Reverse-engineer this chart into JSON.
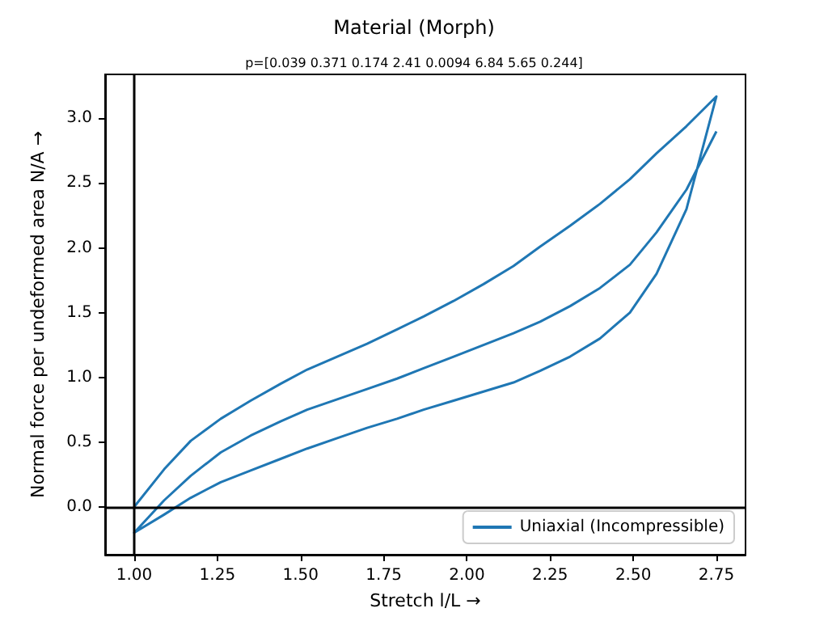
{
  "chart_data": {
    "type": "line",
    "title": "Material (Morph)",
    "subtitle": "p=[0.039 0.371 0.174 2.41 0.0094 6.84 5.65 0.244]",
    "xlabel": "Stretch l/L →",
    "ylabel": "Normal force per undeformed area N/A →",
    "series": [
      {
        "name": "Uniaxial (Incompressible)",
        "color": "#1f77b4",
        "x": [
          1,
          1.09,
          1.17,
          1.26,
          1.35,
          1.44,
          1.52,
          1.61,
          1.7,
          1.79,
          1.87,
          1.96,
          2.05,
          2.14,
          2.22,
          2.31,
          2.4,
          2.49,
          2.57,
          2.66,
          2.75,
          2.66,
          2.57,
          2.49,
          2.4,
          2.31,
          2.22,
          2.14,
          2.05,
          1.96,
          1.87,
          1.79,
          1.7,
          1.61,
          1.52,
          1.44,
          1.35,
          1.26,
          1.17,
          1.09,
          1,
          1.09,
          1.17,
          1.26,
          1.35,
          1.44,
          1.52,
          1.61,
          1.7,
          1.79,
          1.87,
          1.96,
          2.05,
          2.14,
          2.22,
          2.31,
          2.4,
          2.49,
          2.57,
          2.66,
          2.75
        ],
        "values": [
          0,
          0.29,
          0.51,
          0.68,
          0.82,
          0.95,
          1.06,
          1.16,
          1.26,
          1.37,
          1.47,
          1.59,
          1.72,
          1.86,
          2.01,
          2.17,
          2.34,
          2.53,
          2.73,
          2.94,
          3.17,
          2.3,
          1.8,
          1.5,
          1.3,
          1.16,
          1.05,
          0.96,
          0.89,
          0.82,
          0.75,
          0.68,
          0.61,
          0.53,
          0.45,
          0.37,
          0.28,
          0.19,
          0.07,
          -0.06,
          -0.2,
          0.05,
          0.24,
          0.42,
          0.55,
          0.66,
          0.75,
          0.83,
          0.91,
          0.99,
          1.07,
          1.16,
          1.25,
          1.34,
          1.43,
          1.55,
          1.69,
          1.87,
          2.12,
          2.45,
          2.9
        ]
      }
    ],
    "xlim": [
      0.9125,
      2.8375
    ],
    "ylim": [
      -0.37,
      3.34
    ],
    "xticks": [
      {
        "value": 1,
        "label": "1.00"
      },
      {
        "value": 1.25,
        "label": "1.25"
      },
      {
        "value": 1.5,
        "label": "1.50"
      },
      {
        "value": 1.75,
        "label": "1.75"
      },
      {
        "value": 2,
        "label": "2.00"
      },
      {
        "value": 2.25,
        "label": "2.25"
      },
      {
        "value": 2.5,
        "label": "2.50"
      },
      {
        "value": 2.75,
        "label": "2.75"
      }
    ],
    "yticks": [
      {
        "value": 0,
        "label": "0.0"
      },
      {
        "value": 0.5,
        "label": "0.5"
      },
      {
        "value": 1,
        "label": "1.0"
      },
      {
        "value": 1.5,
        "label": "1.5"
      },
      {
        "value": 2,
        "label": "2.0"
      },
      {
        "value": 2.5,
        "label": "2.5"
      },
      {
        "value": 3,
        "label": "3.0"
      }
    ],
    "ref_lines": [
      {
        "axis": "x",
        "value": 1,
        "color": "#000000"
      },
      {
        "axis": "y",
        "value": 0,
        "color": "#000000"
      }
    ],
    "legend": "bottom right",
    "marker": "none",
    "line_style": "solid"
  }
}
